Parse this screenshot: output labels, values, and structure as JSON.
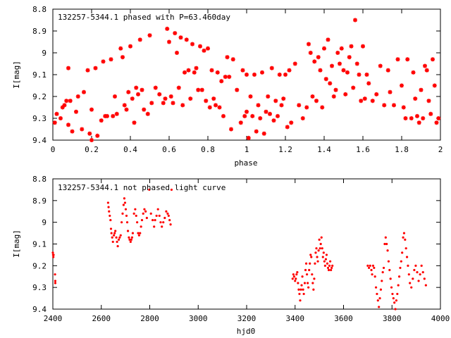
{
  "chart_data": [
    {
      "type": "scatter",
      "title": "132257-5344.1 phased with P=63.460day",
      "xlabel": "phase",
      "ylabel": "I[mag]",
      "xlim": [
        0,
        2
      ],
      "ylim": [
        8.8,
        9.4
      ],
      "y_inverted": true,
      "xticks": [
        "0",
        "0.2",
        "0.4",
        "0.6",
        "0.8",
        "1",
        "1.2",
        "1.4",
        "1.6",
        "1.8",
        "2"
      ],
      "yticks": [
        "8.8",
        "8.9",
        "9",
        "9.1",
        "9.2",
        "9.3",
        "9.4"
      ],
      "marker_color": "#ff0000",
      "marker": "star",
      "grid": false,
      "series": [
        {
          "x": [
            0.01,
            0.02,
            0.04,
            0.05,
            0.06,
            0.07,
            0.08,
            0.08,
            0.09,
            0.1,
            0.12,
            0.13,
            0.15,
            0.16,
            0.18,
            0.19,
            0.2,
            0.2,
            0.22,
            0.23,
            0.25,
            0.26,
            0.27,
            0.28,
            0.3,
            0.31,
            0.32,
            0.33,
            0.35,
            0.36,
            0.37,
            0.38,
            0.39,
            0.4,
            0.41,
            0.42,
            0.43,
            0.44,
            0.45,
            0.46,
            0.47,
            0.49,
            0.5,
            0.51,
            0.53,
            0.55,
            0.57,
            0.58,
            0.59,
            0.6,
            0.61,
            0.62,
            0.63,
            0.64,
            0.65,
            0.66,
            0.67,
            0.68,
            0.69,
            0.7,
            0.71,
            0.72,
            0.73,
            0.74,
            0.75,
            0.76,
            0.77,
            0.78,
            0.79,
            0.8,
            0.81,
            0.82,
            0.83,
            0.84,
            0.85,
            0.86,
            0.87,
            0.88,
            0.89,
            0.9,
            0.91,
            0.92,
            0.93,
            0.95,
            0.97,
            0.98,
            0.99,
            1.0
          ],
          "y": [
            9.32,
            9.28,
            9.3,
            9.25,
            9.24,
            9.22,
            9.33,
            9.07,
            9.22,
            9.36,
            9.27,
            9.2,
            9.35,
            9.18,
            9.08,
            9.37,
            9.26,
            9.4,
            9.07,
            9.38,
            9.31,
            9.04,
            9.29,
            9.29,
            9.03,
            9.29,
            9.2,
            9.28,
            8.98,
            9.02,
            9.24,
            9.26,
            9.18,
            8.97,
            9.21,
            9.32,
            9.16,
            9.19,
            8.94,
            9.17,
            9.26,
            9.28,
            8.92,
            9.23,
            9.16,
            9.19,
            9.23,
            9.21,
            8.89,
            8.95,
            9.2,
            9.23,
            8.91,
            9.0,
            9.16,
            8.93,
            9.24,
            9.09,
            8.94,
            9.08,
            9.21,
            8.96,
            9.09,
            9.07,
            9.17,
            8.97,
            9.17,
            8.99,
            9.22,
            8.98,
            9.25,
            9.08,
            9.21,
            9.24,
            9.09,
            9.25,
            9.13,
            9.29,
            9.11,
            9.02,
            9.11,
            9.35,
            9.03,
            9.17,
            9.32,
            9.08,
            9.29,
            9.27
          ]
        },
        {
          "x": [
            1.0,
            1.01,
            1.02,
            1.03,
            1.04,
            1.05,
            1.06,
            1.07,
            1.08,
            1.09,
            1.1,
            1.11,
            1.12,
            1.13,
            1.14,
            1.15,
            1.16,
            1.17,
            1.18,
            1.19,
            1.2,
            1.21,
            1.22,
            1.23,
            1.25,
            1.27,
            1.29,
            1.31,
            1.32,
            1.33,
            1.34,
            1.35,
            1.36,
            1.37,
            1.38,
            1.39,
            1.4,
            1.41,
            1.42,
            1.43,
            1.44,
            1.45,
            1.46,
            1.47,
            1.48,
            1.49,
            1.5,
            1.51,
            1.52,
            1.53,
            1.54,
            1.55,
            1.56,
            1.57,
            1.58,
            1.59,
            1.6,
            1.61,
            1.62,
            1.63,
            1.65,
            1.67,
            1.69,
            1.71,
            1.73,
            1.74,
            1.76,
            1.78,
            1.8,
            1.81,
            1.82,
            1.83,
            1.85,
            1.86,
            1.87,
            1.88,
            1.89,
            1.9,
            1.91,
            1.92,
            1.93,
            1.94,
            1.95,
            1.96,
            1.97,
            1.98,
            1.99
          ],
          "y": [
            9.1,
            9.39,
            9.2,
            9.29,
            9.1,
            9.36,
            9.24,
            9.3,
            9.09,
            9.37,
            9.27,
            9.2,
            9.28,
            9.07,
            9.31,
            9.22,
            9.29,
            9.1,
            9.24,
            9.21,
            9.1,
            9.34,
            9.08,
            9.32,
            9.05,
            9.24,
            9.3,
            9.25,
            8.96,
            9.0,
            9.2,
            9.04,
            9.22,
            9.02,
            9.08,
            9.25,
            8.98,
            9.12,
            8.94,
            9.14,
            9.06,
            9.2,
            9.17,
            9.0,
            9.05,
            8.98,
            9.08,
            9.19,
            9.09,
            9.02,
            8.97,
            9.16,
            8.85,
            9.05,
            9.1,
            9.22,
            8.97,
            9.21,
            9.1,
            9.14,
            9.22,
            9.19,
            9.06,
            9.24,
            9.08,
            9.18,
            9.24,
            9.03,
            9.15,
            9.25,
            9.3,
            9.03,
            9.3,
            9.09,
            9.21,
            9.29,
            9.32,
            9.17,
            9.3,
            9.06,
            9.08,
            9.22,
            9.28,
            9.03,
            9.15,
            9.32,
            9.3
          ]
        }
      ]
    },
    {
      "type": "scatter",
      "title": "132257-5344.1 not phased light curve",
      "xlabel": "hjd0",
      "ylabel": "I[mag]",
      "xlim": [
        2400,
        4000
      ],
      "ylim": [
        8.8,
        9.4
      ],
      "y_inverted": true,
      "xticks": [
        "2400",
        "2600",
        "2800",
        "3000",
        "3200",
        "3400",
        "3600",
        "3800",
        "4000"
      ],
      "yticks": [
        "8.8",
        "8.9",
        "9",
        "9.1",
        "9.2",
        "9.3",
        "9.4"
      ],
      "marker_color": "#ff0000",
      "marker": "dot",
      "grid": false,
      "series": [
        {
          "x": [
            2400,
            2401,
            2402,
            2403,
            2409,
            2410,
            2410,
            2628,
            2630,
            2632,
            2635,
            2638,
            2640,
            2642,
            2645,
            2648,
            2652,
            2655,
            2658,
            2662,
            2665,
            2668,
            2672,
            2676,
            2680,
            2684,
            2688,
            2692,
            2695,
            2698,
            2701,
            2704,
            2707,
            2710,
            2714,
            2717,
            2721,
            2724,
            2727,
            2730,
            2735,
            2740,
            2744,
            2748,
            2752,
            2756,
            2760,
            2764,
            2768,
            2773,
            2778,
            2783,
            2788,
            2798,
            2805,
            2812,
            2818,
            2822,
            2828,
            2834,
            2840,
            2845,
            2850,
            2856,
            2862,
            2868,
            2874,
            2878,
            2882,
            2886,
            2890
          ],
          "y": [
            9.14,
            9.15,
            9.16,
            9.15,
            9.24,
            9.28,
            9.27,
            8.91,
            8.93,
            8.95,
            8.97,
            8.99,
            9.03,
            9.05,
            9.07,
            9.09,
            9.06,
            9.05,
            9.04,
            9.07,
            9.09,
            9.11,
            9.08,
            9.07,
            9.06,
            9.0,
            8.96,
            8.92,
            8.89,
            8.91,
            8.94,
            8.97,
            9.0,
            9.04,
            9.07,
            9.08,
            9.09,
            9.08,
            9.07,
            9.05,
            8.96,
            8.94,
            8.97,
            9.0,
            9.05,
            9.06,
            9.05,
            9.02,
            8.99,
            8.96,
            8.94,
            8.95,
            8.98,
            8.85,
            8.96,
            8.99,
            9.02,
            8.99,
            8.97,
            8.94,
            8.97,
            9.0,
            9.02,
            9.0,
            8.98,
            8.95,
            8.96,
            8.97,
            8.99,
            9.01,
            8.85
          ]
        },
        {
          "x": [
            3390,
            3393,
            3396,
            3400,
            3403,
            3406,
            3409,
            3412,
            3415,
            3418,
            3421,
            3424,
            3427,
            3430,
            3433,
            3436,
            3440,
            3443,
            3446,
            3449,
            3452,
            3455,
            3458,
            3461,
            3464,
            3467,
            3470,
            3473,
            3476,
            3479,
            3482,
            3485,
            3488,
            3491,
            3494,
            3497,
            3500,
            3503,
            3506,
            3509,
            3512,
            3515,
            3518,
            3521,
            3524,
            3527,
            3530,
            3533,
            3536,
            3539,
            3542,
            3545,
            3548,
            3551,
            3554
          ],
          "y": [
            9.26,
            9.24,
            9.25,
            9.27,
            9.26,
            9.24,
            9.23,
            9.28,
            9.31,
            9.33,
            9.36,
            9.31,
            9.29,
            9.25,
            9.31,
            9.33,
            9.28,
            9.22,
            9.19,
            9.24,
            9.28,
            9.3,
            9.22,
            9.19,
            9.15,
            9.16,
            9.24,
            9.28,
            9.31,
            9.26,
            9.19,
            9.14,
            9.12,
            9.16,
            9.18,
            9.13,
            9.08,
            9.12,
            9.1,
            9.07,
            9.12,
            9.16,
            9.14,
            9.18,
            9.2,
            9.17,
            9.15,
            9.19,
            9.21,
            9.22,
            9.2,
            9.18,
            9.22,
            9.21,
            9.2
          ]
        },
        {
          "x": [
            3700,
            3705,
            3710,
            3715,
            3718,
            3722,
            3726,
            3730,
            3734,
            3738,
            3742,
            3746,
            3750,
            3754,
            3758,
            3762,
            3766,
            3770,
            3774,
            3778,
            3782,
            3786,
            3790,
            3794,
            3798,
            3802,
            3806,
            3810,
            3814,
            3818,
            3822,
            3826,
            3830,
            3834,
            3838,
            3842,
            3846,
            3850,
            3854,
            3858,
            3862,
            3866,
            3870,
            3874,
            3880,
            3886,
            3892,
            3898,
            3904,
            3910,
            3916,
            3922,
            3928,
            3934,
            3940
          ],
          "y": [
            9.2,
            9.21,
            9.2,
            9.22,
            9.24,
            9.2,
            9.21,
            9.25,
            9.3,
            9.33,
            9.36,
            9.39,
            9.35,
            9.31,
            9.27,
            9.23,
            9.21,
            9.1,
            9.07,
            9.1,
            9.13,
            9.18,
            9.22,
            9.26,
            9.3,
            9.33,
            9.35,
            9.37,
            9.4,
            9.36,
            9.33,
            9.29,
            9.25,
            9.21,
            9.18,
            9.14,
            9.07,
            9.05,
            9.08,
            9.12,
            9.16,
            9.2,
            9.24,
            9.28,
            9.3,
            9.26,
            9.22,
            9.2,
            9.23,
            9.27,
            9.24,
            9.2,
            9.23,
            9.26,
            9.29
          ]
        }
      ]
    }
  ]
}
